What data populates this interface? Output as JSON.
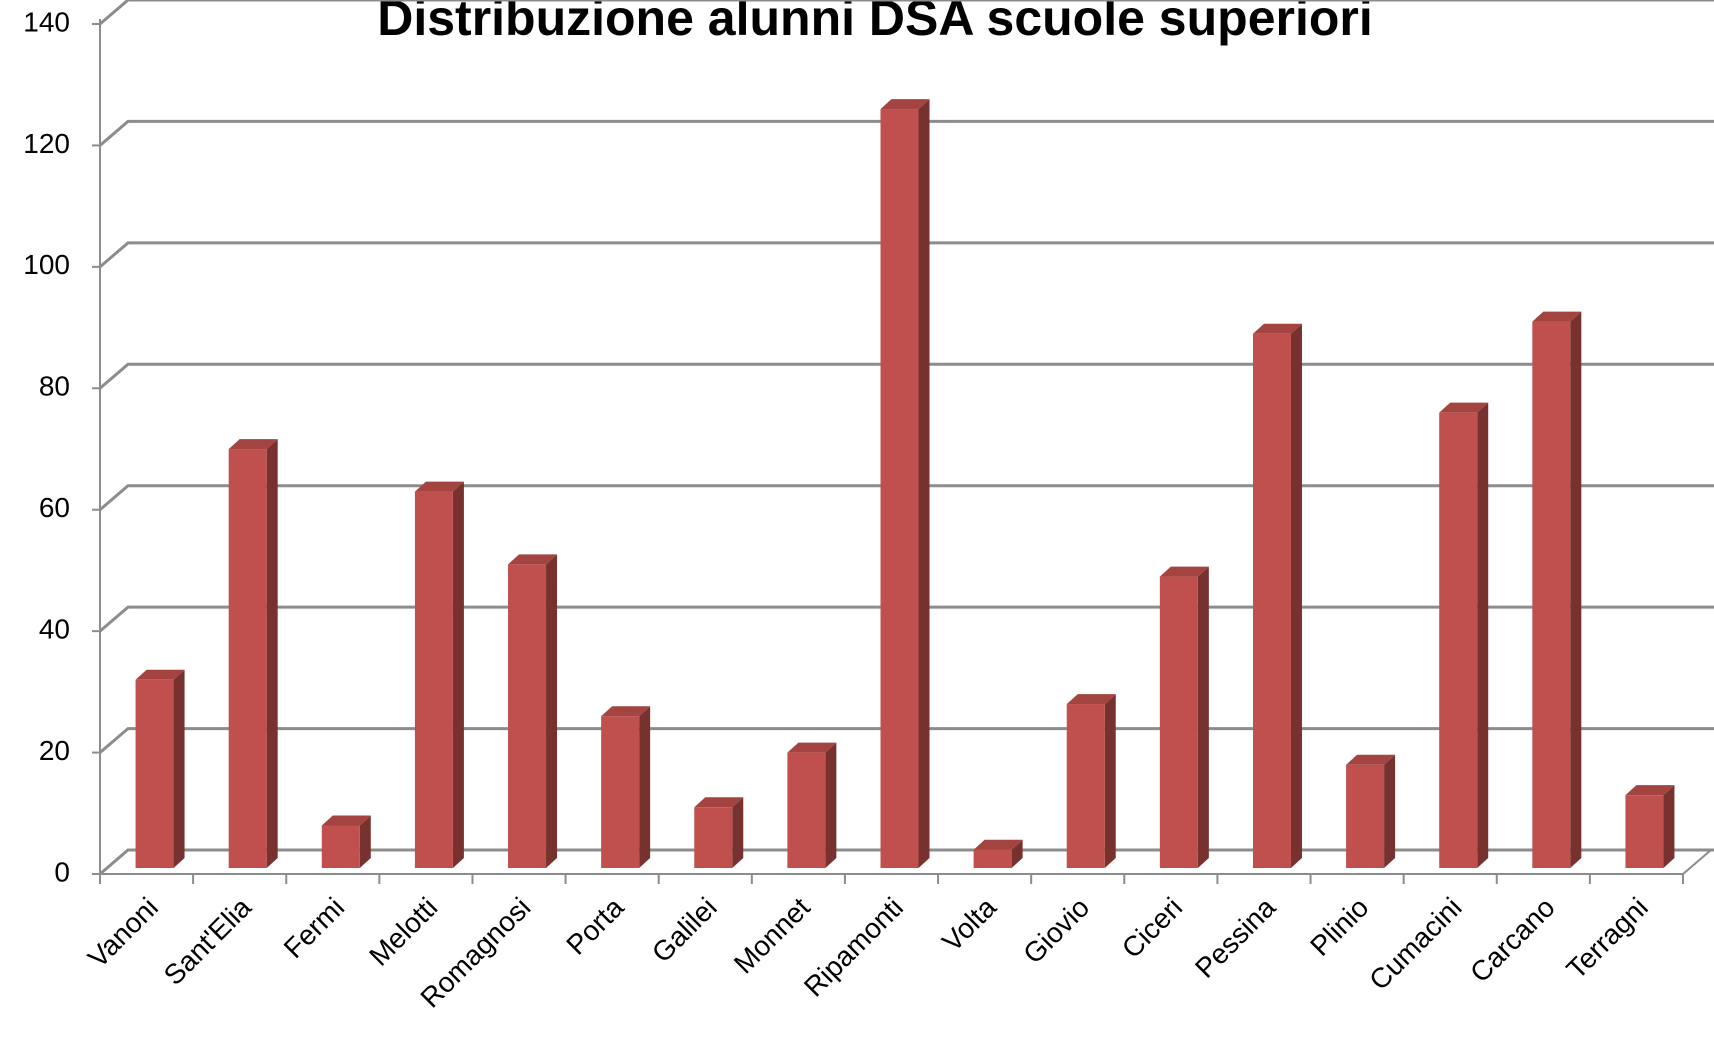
{
  "chart_data": {
    "type": "bar",
    "title": "Distribuzione alunni DSA scuole superiori",
    "categories": [
      "Vanoni",
      "Sant'Elia",
      "Fermi",
      "Melotti",
      "Romagnosi",
      "Porta",
      "Galilei",
      "Monnet",
      "Ripamonti",
      "Volta",
      "Giovio",
      "Ciceri",
      "Pessina",
      "Plinio",
      "Cumacini",
      "Carcano",
      "Terragni"
    ],
    "values": [
      31,
      69,
      7,
      62,
      50,
      25,
      10,
      19,
      125,
      3,
      27,
      48,
      88,
      17,
      75,
      90,
      12
    ],
    "color": "#c0504d",
    "ylim": [
      0,
      140
    ],
    "yticks": [
      0,
      20,
      40,
      60,
      80,
      100,
      120,
      140
    ],
    "grid": true
  }
}
